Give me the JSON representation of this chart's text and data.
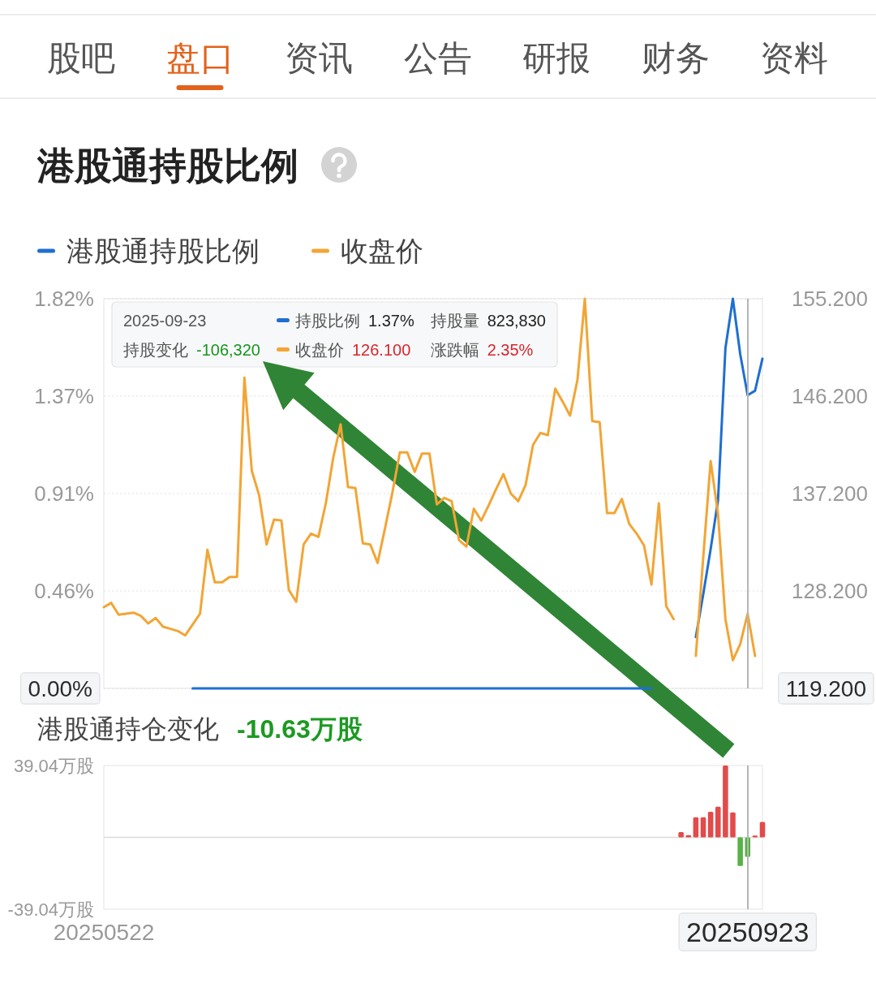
{
  "chart_data": [
    {
      "type": "line",
      "title": "港股通持股比例",
      "annotations": [
        "股吧",
        "盘口",
        "资讯",
        "公告",
        "研报",
        "财务",
        "资料",
        "2025-09-23",
        "持股比例",
        "1.37%",
        "持股量",
        "823,830",
        "持股变化",
        "-106,320",
        "收盘价",
        "126.100",
        "涨跌幅",
        "2.35%"
      ],
      "categories": [
        "20250522",
        null,
        null,
        null,
        null,
        null,
        null,
        null,
        null,
        null,
        null,
        null,
        null,
        null,
        null,
        null,
        null,
        null,
        null,
        null,
        null,
        null,
        null,
        null,
        null,
        null,
        null,
        null,
        null,
        null,
        null,
        null,
        null,
        null,
        null,
        null,
        null,
        null,
        null,
        null,
        null,
        null,
        null,
        null,
        null,
        null,
        null,
        null,
        null,
        null,
        null,
        null,
        null,
        null,
        null,
        null,
        null,
        null,
        null,
        null,
        null,
        null,
        null,
        null,
        null,
        null,
        null,
        null,
        null,
        null,
        null,
        null,
        null,
        null,
        null,
        null,
        null,
        null,
        null,
        null,
        null,
        null,
        null,
        null,
        null,
        null,
        null,
        "20250923",
        null,
        null
      ],
      "series": [
        {
          "name": "港股通持股比例",
          "color": "#1f6fd1",
          "values": [
            null,
            null,
            null,
            null,
            null,
            null,
            null,
            null,
            null,
            null,
            null,
            null,
            0,
            0,
            0,
            0,
            0,
            0,
            0,
            0,
            0,
            0,
            0,
            0,
            0,
            0,
            0,
            0,
            0,
            0,
            0,
            0,
            0,
            0,
            0,
            0,
            0,
            0,
            0,
            0,
            0,
            0,
            0,
            0,
            0,
            0,
            0,
            0,
            0,
            0,
            0,
            0,
            0,
            0,
            0,
            0,
            0,
            0,
            0,
            0,
            0,
            0,
            0,
            0,
            0,
            0,
            0,
            0,
            0,
            0,
            0,
            0,
            0,
            0,
            0,
            null,
            null,
            null,
            null,
            null,
            0.24,
            0.44,
            0.65,
            0.88,
            1.59,
            1.82,
            1.56,
            1.37,
            1.39,
            1.54
          ]
        },
        {
          "name": "收盘价",
          "color": "#f2a535",
          "axis": "y2",
          "values": [
            126.7,
            127.1,
            126.0,
            126.1,
            126.2,
            125.9,
            125.2,
            125.7,
            124.9,
            124.7,
            124.5,
            124.1,
            125.1,
            126.1,
            132.0,
            129.0,
            129.0,
            129.5,
            129.5,
            147.9,
            139.3,
            137.0,
            132.5,
            134.8,
            134.7,
            128.3,
            127.2,
            132.5,
            133.5,
            133.2,
            136.3,
            140.5,
            143.6,
            137.8,
            137.7,
            132.6,
            132.5,
            130.8,
            134.0,
            137.3,
            141.0,
            141.0,
            139.2,
            140.9,
            140.9,
            136.2,
            136.8,
            136.5,
            132.9,
            132.3,
            135.8,
            134.7,
            136.1,
            137.6,
            139.0,
            137.2,
            136.5,
            138.0,
            141.7,
            142.8,
            142.6,
            146.9,
            145.7,
            144.4,
            147.7,
            155.2,
            143.9,
            143.8,
            135.4,
            135.4,
            136.7,
            134.4,
            133.5,
            132.4,
            128.8,
            136.3,
            126.8,
            125.6,
            null,
            null,
            122.2,
            131.3,
            140.2,
            135.3,
            125.6,
            121.8,
            123.3,
            126.1,
            122.2,
            null
          ]
        }
      ],
      "ylim": [
        0,
        1.82
      ],
      "yticks": [
        {
          "value": 0,
          "label": "0.00%"
        },
        {
          "value": 0.455,
          "label": "0.46%"
        },
        {
          "value": 0.91,
          "label": "0.91%"
        },
        {
          "value": 1.365,
          "label": "1.37%"
        },
        {
          "value": 1.82,
          "label": "1.82%"
        }
      ],
      "y2lim": [
        119.2,
        155.2
      ],
      "y2ticks": [
        {
          "value": 119.2,
          "label": "119.200"
        },
        {
          "value": 128.2,
          "label": "128.200"
        },
        {
          "value": 137.2,
          "label": "137.200"
        },
        {
          "value": 146.2,
          "label": "146.200"
        },
        {
          "value": 155.2,
          "label": "155.200"
        }
      ],
      "grid": "y",
      "legend": "top left",
      "tick_labels": "y",
      "ref_lines": [
        {
          "axis": "x",
          "value": "20250923",
          "color": "#b5b5b5"
        }
      ]
    },
    {
      "type": "bar",
      "title": "港股通持仓变化",
      "subtitle": "-10.63万股",
      "categories": [
        "20250522",
        null,
        null,
        null,
        null,
        null,
        null,
        null,
        null,
        null,
        null,
        null,
        null,
        null,
        null,
        null,
        null,
        null,
        null,
        null,
        null,
        null,
        null,
        null,
        null,
        null,
        null,
        null,
        null,
        null,
        null,
        null,
        null,
        null,
        null,
        null,
        null,
        null,
        null,
        null,
        null,
        null,
        null,
        null,
        null,
        null,
        null,
        null,
        null,
        null,
        null,
        null,
        null,
        null,
        null,
        null,
        null,
        null,
        null,
        null,
        null,
        null,
        null,
        null,
        null,
        null,
        null,
        null,
        null,
        null,
        null,
        null,
        null,
        null,
        null,
        null,
        null,
        null,
        null,
        null,
        null,
        null,
        null,
        null,
        null,
        null,
        null,
        "20250923",
        null,
        null
      ],
      "values": [
        null,
        null,
        null,
        null,
        null,
        null,
        null,
        null,
        null,
        null,
        null,
        null,
        null,
        null,
        null,
        null,
        null,
        null,
        null,
        null,
        null,
        null,
        null,
        null,
        null,
        null,
        null,
        null,
        null,
        null,
        null,
        null,
        null,
        null,
        null,
        null,
        null,
        null,
        null,
        null,
        null,
        null,
        null,
        null,
        null,
        null,
        null,
        null,
        null,
        null,
        null,
        null,
        null,
        null,
        null,
        null,
        null,
        null,
        null,
        null,
        null,
        null,
        null,
        null,
        null,
        null,
        null,
        null,
        null,
        null,
        null,
        null,
        null,
        null,
        null,
        null,
        null,
        null,
        2.9,
        1.2,
        10.9,
        10.9,
        13.9,
        16.7,
        39.04,
        13.6,
        -15.6,
        -10.63,
        1.0,
        8.4
      ],
      "colors": [
        null,
        null,
        null,
        null,
        null,
        null,
        null,
        null,
        null,
        null,
        null,
        null,
        null,
        null,
        null,
        null,
        null,
        null,
        null,
        null,
        null,
        null,
        null,
        null,
        null,
        null,
        null,
        null,
        null,
        null,
        null,
        null,
        null,
        null,
        null,
        null,
        null,
        null,
        null,
        null,
        null,
        null,
        null,
        null,
        null,
        null,
        null,
        null,
        null,
        null,
        null,
        null,
        null,
        null,
        null,
        null,
        null,
        null,
        null,
        null,
        null,
        null,
        null,
        null,
        null,
        null,
        null,
        null,
        null,
        null,
        null,
        null,
        null,
        null,
        null,
        null,
        null,
        null,
        "#e34a4a",
        "#e34a4a",
        "#e34a4a",
        "#e34a4a",
        "#e34a4a",
        "#e34a4a",
        "#e34a4a",
        "#e34a4a",
        "#58b146",
        "#58b146",
        "#e34a4a",
        "#e34a4a"
      ],
      "ylim": [
        -39.04,
        39.04
      ],
      "yticks": [
        {
          "value": -39.04,
          "label": "-39.04万股"
        },
        {
          "value": 39.04,
          "label": "39.04万股"
        }
      ],
      "ref_lines": [
        {
          "axis": "x",
          "value": "20250923",
          "color": "#b5b5b5"
        }
      ]
    }
  ]
}
